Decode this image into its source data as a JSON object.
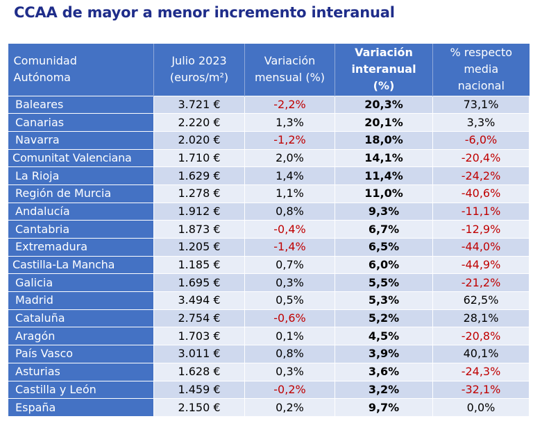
{
  "title": "CCAA de mayor a menor incremento interanual",
  "table": {
    "headers": [
      {
        "line1": "Comunidad",
        "line2": "Autónoma",
        "line3": ""
      },
      {
        "line1": "Julio 2023",
        "line2": "(euros/m²)",
        "line3": ""
      },
      {
        "line1": "Variación",
        "line2": "mensual (%)",
        "line3": ""
      },
      {
        "line1": "Variación",
        "line2": "interanual",
        "line3": "(%)"
      },
      {
        "line1": "% respecto",
        "line2": "media",
        "line3": "nacional"
      }
    ],
    "rows": [
      {
        "region": "Baleares",
        "price": "3.721 €",
        "monthly": "-2,2%",
        "yearly": "20,3%",
        "vs_national": "73,1%"
      },
      {
        "region": "Canarias",
        "price": "2.220 €",
        "monthly": "1,3%",
        "yearly": "20,1%",
        "vs_national": "3,3%"
      },
      {
        "region": "Navarra",
        "price": "2.020 €",
        "monthly": "-1,2%",
        "yearly": "18,0%",
        "vs_national": "-6,0%"
      },
      {
        "region": "Comunitat Valenciana",
        "price": "1.710 €",
        "monthly": "2,0%",
        "yearly": "14,1%",
        "vs_national": "-20,4%"
      },
      {
        "region": "La Rioja",
        "price": "1.629 €",
        "monthly": "1,4%",
        "yearly": "11,4%",
        "vs_national": "-24,2%"
      },
      {
        "region": "Región de Murcia",
        "price": "1.278 €",
        "monthly": "1,1%",
        "yearly": "11,0%",
        "vs_national": "-40,6%"
      },
      {
        "region": "Andalucía",
        "price": "1.912 €",
        "monthly": "0,8%",
        "yearly": "9,3%",
        "vs_national": "-11,1%"
      },
      {
        "region": "Cantabria",
        "price": "1.873 €",
        "monthly": "-0,4%",
        "yearly": "6,7%",
        "vs_national": "-12,9%"
      },
      {
        "region": "Extremadura",
        "price": "1.205 €",
        "monthly": "-1,4%",
        "yearly": "6,5%",
        "vs_national": "-44,0%"
      },
      {
        "region": "Castilla-La Mancha",
        "price": "1.185 €",
        "monthly": "0,7%",
        "yearly": "6,0%",
        "vs_national": "-44,9%"
      },
      {
        "region": "Galicia",
        "price": "1.695 €",
        "monthly": "0,3%",
        "yearly": "5,5%",
        "vs_national": "-21,2%"
      },
      {
        "region": "Madrid",
        "price": "3.494 €",
        "monthly": "0,5%",
        "yearly": "5,3%",
        "vs_national": "62,5%"
      },
      {
        "region": "Cataluña",
        "price": "2.754 €",
        "monthly": "-0,6%",
        "yearly": "5,2%",
        "vs_national": "28,1%"
      },
      {
        "region": "Aragón",
        "price": "1.703 €",
        "monthly": "0,1%",
        "yearly": "4,5%",
        "vs_national": "-20,8%"
      },
      {
        "region": "País Vasco",
        "price": "3.011 €",
        "monthly": "0,8%",
        "yearly": "3,9%",
        "vs_national": "40,1%"
      },
      {
        "region": "Asturias",
        "price": "1.628 €",
        "monthly": "0,3%",
        "yearly": "3,6%",
        "vs_national": "-24,3%"
      },
      {
        "region": "Castilla y León",
        "price": "1.459 €",
        "monthly": "-0,2%",
        "yearly": "3,2%",
        "vs_national": "-32,1%"
      },
      {
        "region": "España",
        "price": "2.150 €",
        "monthly": "0,2%",
        "yearly": "9,7%",
        "vs_national": "0,0%"
      }
    ]
  },
  "colors": {
    "title": "#1f2d8a",
    "header_bg": "#4472c4",
    "row_dark": "#cfd9ee",
    "row_light": "#e8edf7",
    "negative": "#c00000"
  }
}
